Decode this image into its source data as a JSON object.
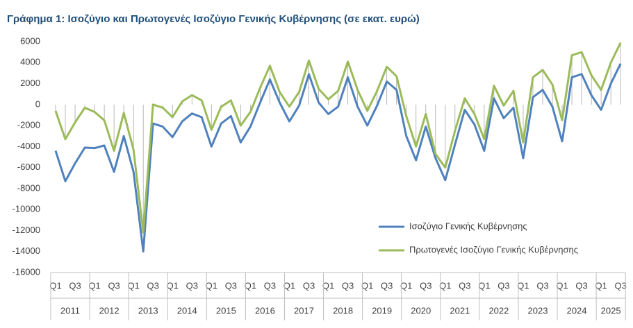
{
  "chart_data": {
    "type": "line",
    "title": "Γράφημα 1: Ισοζύγιο και Πρωτογενές Ισοζύγιο Γενικής Κυβέρνησης (σε εκατ. ευρώ)",
    "categories": [
      "Q1",
      null,
      "Q3",
      null,
      "Q1",
      null,
      "Q3",
      null,
      "Q1",
      null,
      "Q3",
      null,
      "Q1",
      null,
      "Q3",
      null,
      "Q1",
      null,
      "Q3",
      null,
      "Q1",
      null,
      "Q3",
      null,
      "Q1",
      null,
      "Q3",
      null,
      "Q1",
      null,
      "Q3",
      null,
      "Q1",
      null,
      "Q3",
      null,
      "Q1",
      null,
      "Q3",
      null,
      "Q1",
      null,
      "Q3",
      null,
      "Q1",
      null,
      "Q3",
      null,
      "Q1",
      null,
      "Q3",
      null,
      "Q1",
      null,
      "Q3",
      null,
      "Q1",
      null,
      "Q3"
    ],
    "years": [
      "2011",
      "2012",
      "2013",
      "2014",
      "2015",
      "2016",
      "2017",
      "2018",
      "2019",
      "2020",
      "2021",
      "2022",
      "2023",
      "2024",
      "2025"
    ],
    "series": [
      {
        "name": "Ισοζύγιο Γενικής Κυβέρνησης",
        "color": "#4f81bd",
        "values": [
          -4400,
          -7300,
          -5600,
          -4100,
          -4150,
          -3900,
          -6400,
          -3000,
          -6400,
          -14000,
          -1800,
          -2100,
          -3100,
          -1600,
          -850,
          -1200,
          -4000,
          -1800,
          -1100,
          -3600,
          -2100,
          200,
          2400,
          200,
          -1600,
          -100,
          2900,
          200,
          -900,
          -200,
          2600,
          -200,
          -2000,
          -100,
          2200,
          1400,
          -3000,
          -5300,
          -2100,
          -5100,
          -7200,
          -3800,
          -500,
          -1900,
          -4400,
          600,
          -1300,
          -300,
          -5100,
          700,
          1400,
          -200,
          -3500,
          2600,
          2900,
          900,
          -500,
          2000,
          3900
        ]
      },
      {
        "name": "Πρωτογενές Ισοζύγιο Γενικής Κυβέρνησης",
        "color": "#9bbb59",
        "values": [
          -600,
          -3300,
          -1700,
          -300,
          -700,
          -1500,
          -4400,
          -800,
          -4300,
          -12200,
          0,
          -300,
          -1200,
          300,
          900,
          400,
          -2400,
          -200,
          400,
          -2000,
          -700,
          1600,
          3700,
          1200,
          -200,
          1200,
          4200,
          1500,
          500,
          1300,
          4100,
          1400,
          -600,
          1300,
          3600,
          2700,
          -1100,
          -4000,
          -900,
          -4700,
          -6000,
          -2500,
          600,
          -900,
          -3300,
          1800,
          -100,
          1300,
          -3600,
          2600,
          3300,
          1900,
          -1500,
          4700,
          5000,
          2800,
          1400,
          4000,
          5900
        ]
      }
    ],
    "ylim": [
      -16000,
      6000
    ],
    "yticks": [
      6000,
      4000,
      2000,
      0,
      -2000,
      -4000,
      -6000,
      -8000,
      -10000,
      -12000,
      -14000,
      -16000
    ],
    "grid": false,
    "drop_lines": true,
    "legend": "lower right"
  }
}
